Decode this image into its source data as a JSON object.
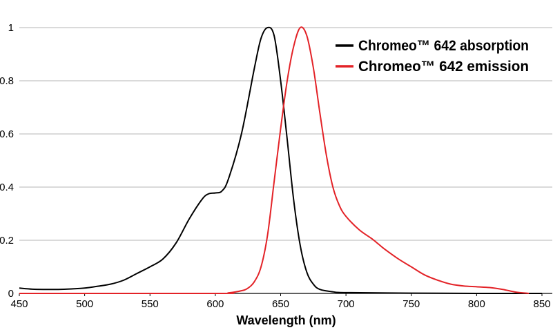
{
  "chart_data": {
    "type": "line",
    "title": "",
    "xlabel": "Wavelength (nm)",
    "ylabel": "",
    "xlim": [
      450,
      850
    ],
    "ylim": [
      0,
      1
    ],
    "x_ticks": [
      "450",
      "500",
      "550",
      "600",
      "650",
      "700",
      "750",
      "800",
      "850"
    ],
    "y_ticks": [
      "0",
      "0.2",
      "0.4",
      "0.6",
      "0.8",
      "1"
    ],
    "grid": "horizontal",
    "legend_position": "top-right",
    "series": [
      {
        "name": "Chromeo™ 642 absorption",
        "color": "#000000",
        "points": [
          [
            450,
            0.02
          ],
          [
            460,
            0.016
          ],
          [
            470,
            0.015
          ],
          [
            480,
            0.015
          ],
          [
            490,
            0.017
          ],
          [
            500,
            0.02
          ],
          [
            510,
            0.027
          ],
          [
            520,
            0.035
          ],
          [
            530,
            0.05
          ],
          [
            540,
            0.075
          ],
          [
            550,
            0.1
          ],
          [
            560,
            0.13
          ],
          [
            570,
            0.19
          ],
          [
            580,
            0.28
          ],
          [
            590,
            0.355
          ],
          [
            595,
            0.375
          ],
          [
            600,
            0.378
          ],
          [
            605,
            0.385
          ],
          [
            610,
            0.43
          ],
          [
            620,
            0.6
          ],
          [
            630,
            0.85
          ],
          [
            635,
            0.96
          ],
          [
            640,
            1.0
          ],
          [
            645,
            0.97
          ],
          [
            650,
            0.8
          ],
          [
            655,
            0.58
          ],
          [
            660,
            0.35
          ],
          [
            665,
            0.18
          ],
          [
            670,
            0.08
          ],
          [
            675,
            0.035
          ],
          [
            680,
            0.015
          ],
          [
            690,
            0.006
          ],
          [
            700,
            0.003
          ],
          [
            750,
            0.001
          ],
          [
            800,
            0.0
          ],
          [
            850,
            0.0
          ]
        ]
      },
      {
        "name": "Chromeo™ 642 emission",
        "color": "#e32227",
        "points": [
          [
            450,
            0.0
          ],
          [
            600,
            0.0
          ],
          [
            610,
            0.002
          ],
          [
            620,
            0.01
          ],
          [
            625,
            0.02
          ],
          [
            630,
            0.045
          ],
          [
            635,
            0.1
          ],
          [
            640,
            0.22
          ],
          [
            645,
            0.42
          ],
          [
            650,
            0.62
          ],
          [
            655,
            0.8
          ],
          [
            660,
            0.93
          ],
          [
            665,
            1.0
          ],
          [
            670,
            0.97
          ],
          [
            675,
            0.85
          ],
          [
            680,
            0.68
          ],
          [
            685,
            0.52
          ],
          [
            690,
            0.4
          ],
          [
            695,
            0.33
          ],
          [
            700,
            0.29
          ],
          [
            710,
            0.24
          ],
          [
            720,
            0.205
          ],
          [
            725,
            0.185
          ],
          [
            730,
            0.165
          ],
          [
            740,
            0.13
          ],
          [
            750,
            0.1
          ],
          [
            760,
            0.07
          ],
          [
            770,
            0.05
          ],
          [
            780,
            0.035
          ],
          [
            790,
            0.028
          ],
          [
            800,
            0.025
          ],
          [
            810,
            0.022
          ],
          [
            820,
            0.015
          ],
          [
            830,
            0.005
          ],
          [
            840,
            0.0
          ]
        ]
      }
    ]
  }
}
